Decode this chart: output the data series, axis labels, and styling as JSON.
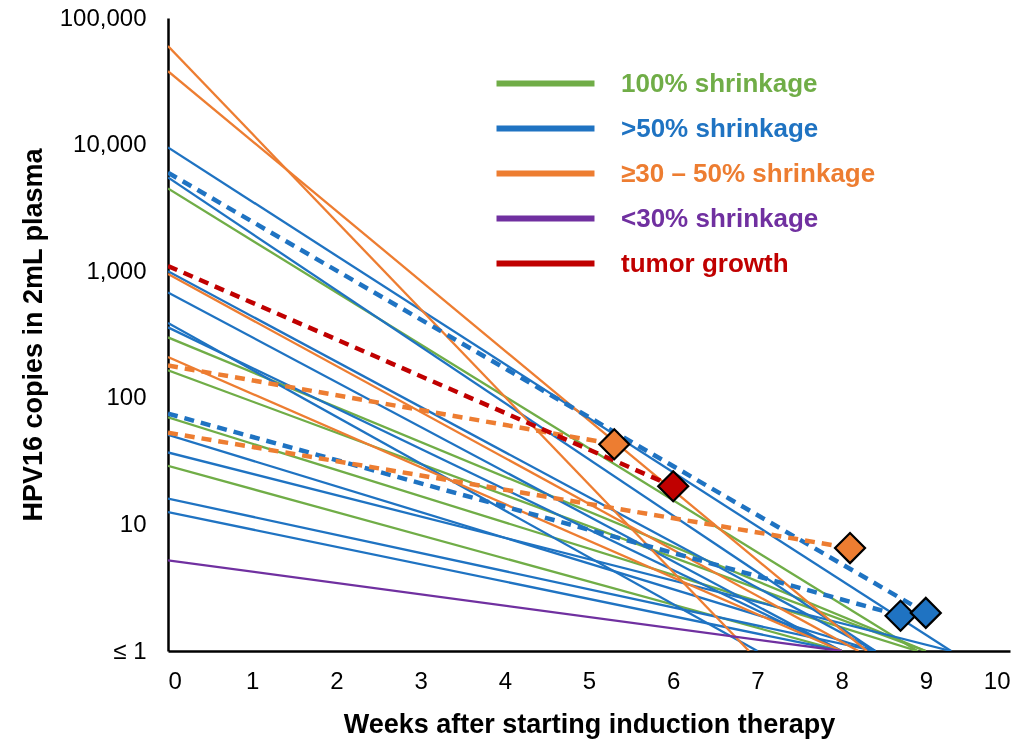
{
  "chart_data": {
    "type": "line",
    "xlabel": "Weeks after starting induction therapy",
    "ylabel": "HPV16 copies in 2mL plasma",
    "xlim": [
      0,
      10
    ],
    "xticks": [
      0,
      1,
      2,
      3,
      4,
      5,
      6,
      7,
      8,
      9,
      10
    ],
    "ylim": [
      1,
      100000
    ],
    "yticks": [
      {
        "value": 1,
        "label": "≤ 1"
      },
      10,
      100,
      {
        "value": 1000,
        "label": "1,000"
      },
      {
        "value": 10000,
        "label": "10,000"
      },
      {
        "value": 100000,
        "label": "100,000"
      }
    ],
    "log": "y",
    "legend": "top right",
    "series": [
      {
        "name": "100% shrinkage",
        "color": "#70ad47",
        "x": [
          0,
          8.9
        ],
        "values": [
          4500,
          1
        ]
      },
      {
        "color": "#70ad47",
        "x": [
          0,
          9.0
        ],
        "values": [
          300,
          1
        ]
      },
      {
        "color": "#70ad47",
        "x": [
          0,
          9.0
        ],
        "values": [
          165,
          1
        ]
      },
      {
        "color": "#70ad47",
        "x": [
          0,
          8.9
        ],
        "values": [
          70,
          1
        ]
      },
      {
        "color": "#70ad47",
        "x": [
          0,
          8.0
        ],
        "values": [
          29,
          1
        ]
      },
      {
        "name": ">50% shrinkage",
        "color": "#1f73c2",
        "x": [
          0,
          9.3
        ],
        "values": [
          9500,
          1
        ]
      },
      {
        "color": "#1f73c2",
        "x": [
          0,
          9.0
        ],
        "values": [
          6000,
          2.0
        ],
        "line_style": "dashed"
      },
      {
        "color": "#1f73c2",
        "x": [
          0,
          8.4
        ],
        "values": [
          5500,
          1
        ]
      },
      {
        "color": "#1f73c2",
        "x": [
          0,
          8.4
        ],
        "values": [
          1000,
          1
        ]
      },
      {
        "color": "#1f73c2",
        "x": [
          0,
          8.0
        ],
        "values": [
          680,
          1
        ]
      },
      {
        "color": "#1f73c2",
        "x": [
          0,
          7.0
        ],
        "values": [
          390,
          1
        ]
      },
      {
        "color": "#1f73c2",
        "x": [
          0,
          8.0
        ],
        "values": [
          360,
          1
        ]
      },
      {
        "color": "#1f73c2",
        "x": [
          0,
          8.7
        ],
        "values": [
          75,
          1.9
        ],
        "line_style": "dashed"
      },
      {
        "color": "#1f73c2",
        "x": [
          0,
          8.4
        ],
        "values": [
          51,
          1
        ]
      },
      {
        "color": "#1f73c2",
        "x": [
          0,
          9.3
        ],
        "values": [
          37,
          1
        ]
      },
      {
        "color": "#1f73c2",
        "x": [
          0,
          8.4
        ],
        "values": [
          16,
          1
        ]
      },
      {
        "color": "#1f73c2",
        "x": [
          0,
          8.0
        ],
        "values": [
          12.5,
          1
        ]
      },
      {
        "name": "≥30 – 50% shrinkage",
        "color": "#ed7d31",
        "x": [
          0,
          6.9
        ],
        "values": [
          60000,
          1
        ]
      },
      {
        "color": "#ed7d31",
        "x": [
          0,
          8.3
        ],
        "values": [
          38000,
          1
        ]
      },
      {
        "color": "#ed7d31",
        "x": [
          0,
          8.2
        ],
        "values": [
          950,
          1
        ]
      },
      {
        "color": "#ed7d31",
        "x": [
          0,
          8.0
        ],
        "values": [
          210,
          1
        ]
      },
      {
        "color": "#ed7d31",
        "x": [
          0,
          5.3
        ],
        "values": [
          180,
          43
        ],
        "line_style": "dashed"
      },
      {
        "color": "#ed7d31",
        "x": [
          0,
          8.1
        ],
        "values": [
          53,
          6.5
        ],
        "line_style": "dashed"
      },
      {
        "name": "<30% shrinkage",
        "color": "#7030a0",
        "x": [
          0,
          8.0
        ],
        "values": [
          5.2,
          1
        ]
      },
      {
        "name": "tumor growth",
        "color": "#c00000",
        "x": [
          0,
          6.0
        ],
        "values": [
          1100,
          20
        ],
        "line_style": "dashed"
      },
      {
        "type": "scatter",
        "marker": "diamond",
        "x": [
          5.3,
          6.0,
          8.1,
          8.7,
          9.0
        ],
        "values": [
          43,
          20,
          6.5,
          1.9,
          2.0
        ],
        "colors": [
          "#ed7d31",
          "#c00000",
          "#ed7d31",
          "#1f73c2",
          "#1f73c2"
        ]
      }
    ]
  }
}
